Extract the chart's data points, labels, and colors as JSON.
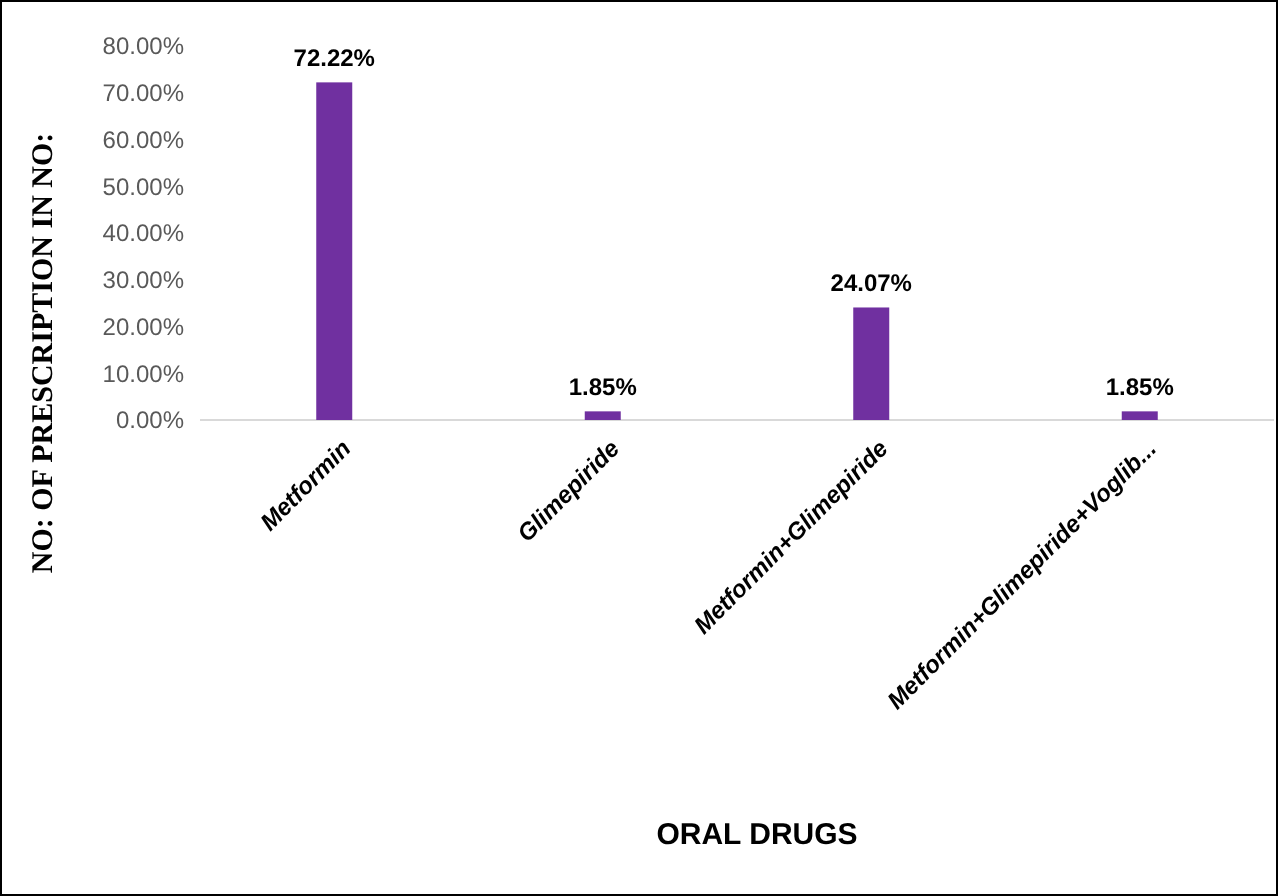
{
  "chart_data": {
    "type": "bar",
    "xlabel": "ORAL DRUGS",
    "ylabel": "NO: OF PRESCRIPTION IN NO:",
    "categories": [
      "Metformin",
      "Glimepiride",
      "Metformin+Glimepiride",
      "Metformin+Glimepiride+Voglib..."
    ],
    "values": [
      72.22,
      1.85,
      24.07,
      1.85
    ],
    "color": "#7030a0",
    "value_labels": [
      "72.22%",
      "1.85%",
      "24.07%",
      "1.85%"
    ],
    "ylim": [
      0,
      80
    ],
    "yticks": [
      {
        "value": 0,
        "label": "0.00%"
      },
      {
        "value": 10,
        "label": "10.00%"
      },
      {
        "value": 20,
        "label": "20.00%"
      },
      {
        "value": 30,
        "label": "30.00%"
      },
      {
        "value": 40,
        "label": "40.00%"
      },
      {
        "value": 50,
        "label": "50.00%"
      },
      {
        "value": 60,
        "label": "60.00%"
      },
      {
        "value": 70,
        "label": "70.00%"
      },
      {
        "value": 80,
        "label": "80.00%"
      }
    ],
    "grid": false
  }
}
